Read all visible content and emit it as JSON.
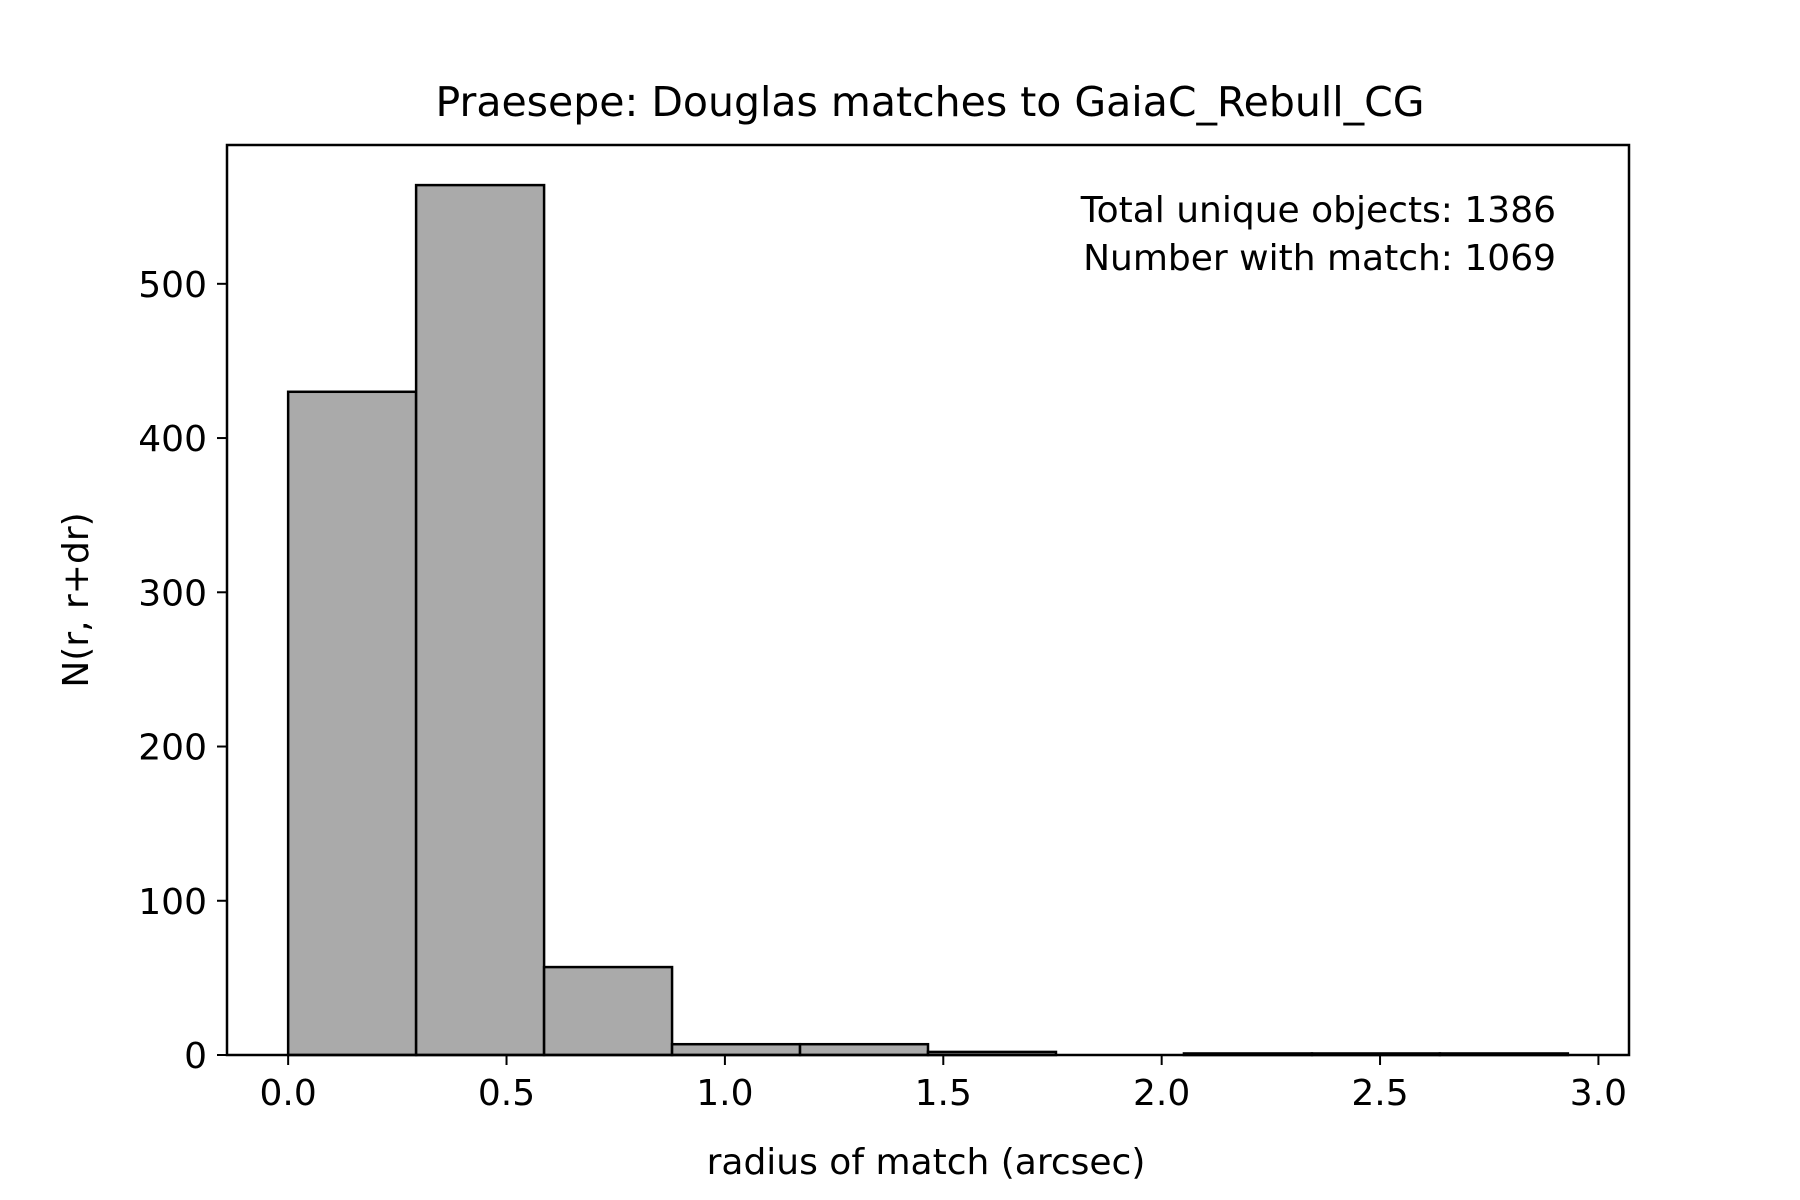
{
  "chart_data": {
    "type": "bar",
    "title": "Praesepe: Douglas matches to GaiaC_Rebull_CG",
    "xlabel": "radius of match (arcsec)",
    "ylabel": "N(r, r+dr)",
    "xlim": [
      -0.14,
      3.07
    ],
    "ylim": [
      0,
      590
    ],
    "xticks": [
      0.0,
      0.5,
      1.0,
      1.5,
      2.0,
      2.5,
      3.0
    ],
    "xtick_labels": [
      "0.0",
      "0.5",
      "1.0",
      "1.5",
      "2.0",
      "2.5",
      "3.0"
    ],
    "yticks": [
      0,
      100,
      200,
      300,
      400,
      500
    ],
    "ytick_labels": [
      "0",
      "100",
      "200",
      "300",
      "400",
      "500"
    ],
    "bins": [
      {
        "x0": 0.0,
        "x1": 0.293,
        "value": 430
      },
      {
        "x0": 0.293,
        "x1": 0.586,
        "value": 564
      },
      {
        "x0": 0.586,
        "x1": 0.879,
        "value": 57
      },
      {
        "x0": 0.879,
        "x1": 1.172,
        "value": 7
      },
      {
        "x0": 1.172,
        "x1": 1.465,
        "value": 7
      },
      {
        "x0": 1.465,
        "x1": 1.758,
        "value": 2
      },
      {
        "x0": 1.758,
        "x1": 2.051,
        "value": 0
      },
      {
        "x0": 2.051,
        "x1": 2.344,
        "value": 1
      },
      {
        "x0": 2.344,
        "x1": 2.637,
        "value": 1
      },
      {
        "x0": 2.637,
        "x1": 2.93,
        "value": 1
      }
    ],
    "annotations": [
      "Total unique objects: 1386",
      "Number with match: 1069"
    ],
    "fill_color": "#aaaaaa",
    "edge_color": "#000000",
    "grid": false,
    "legend": "none"
  }
}
